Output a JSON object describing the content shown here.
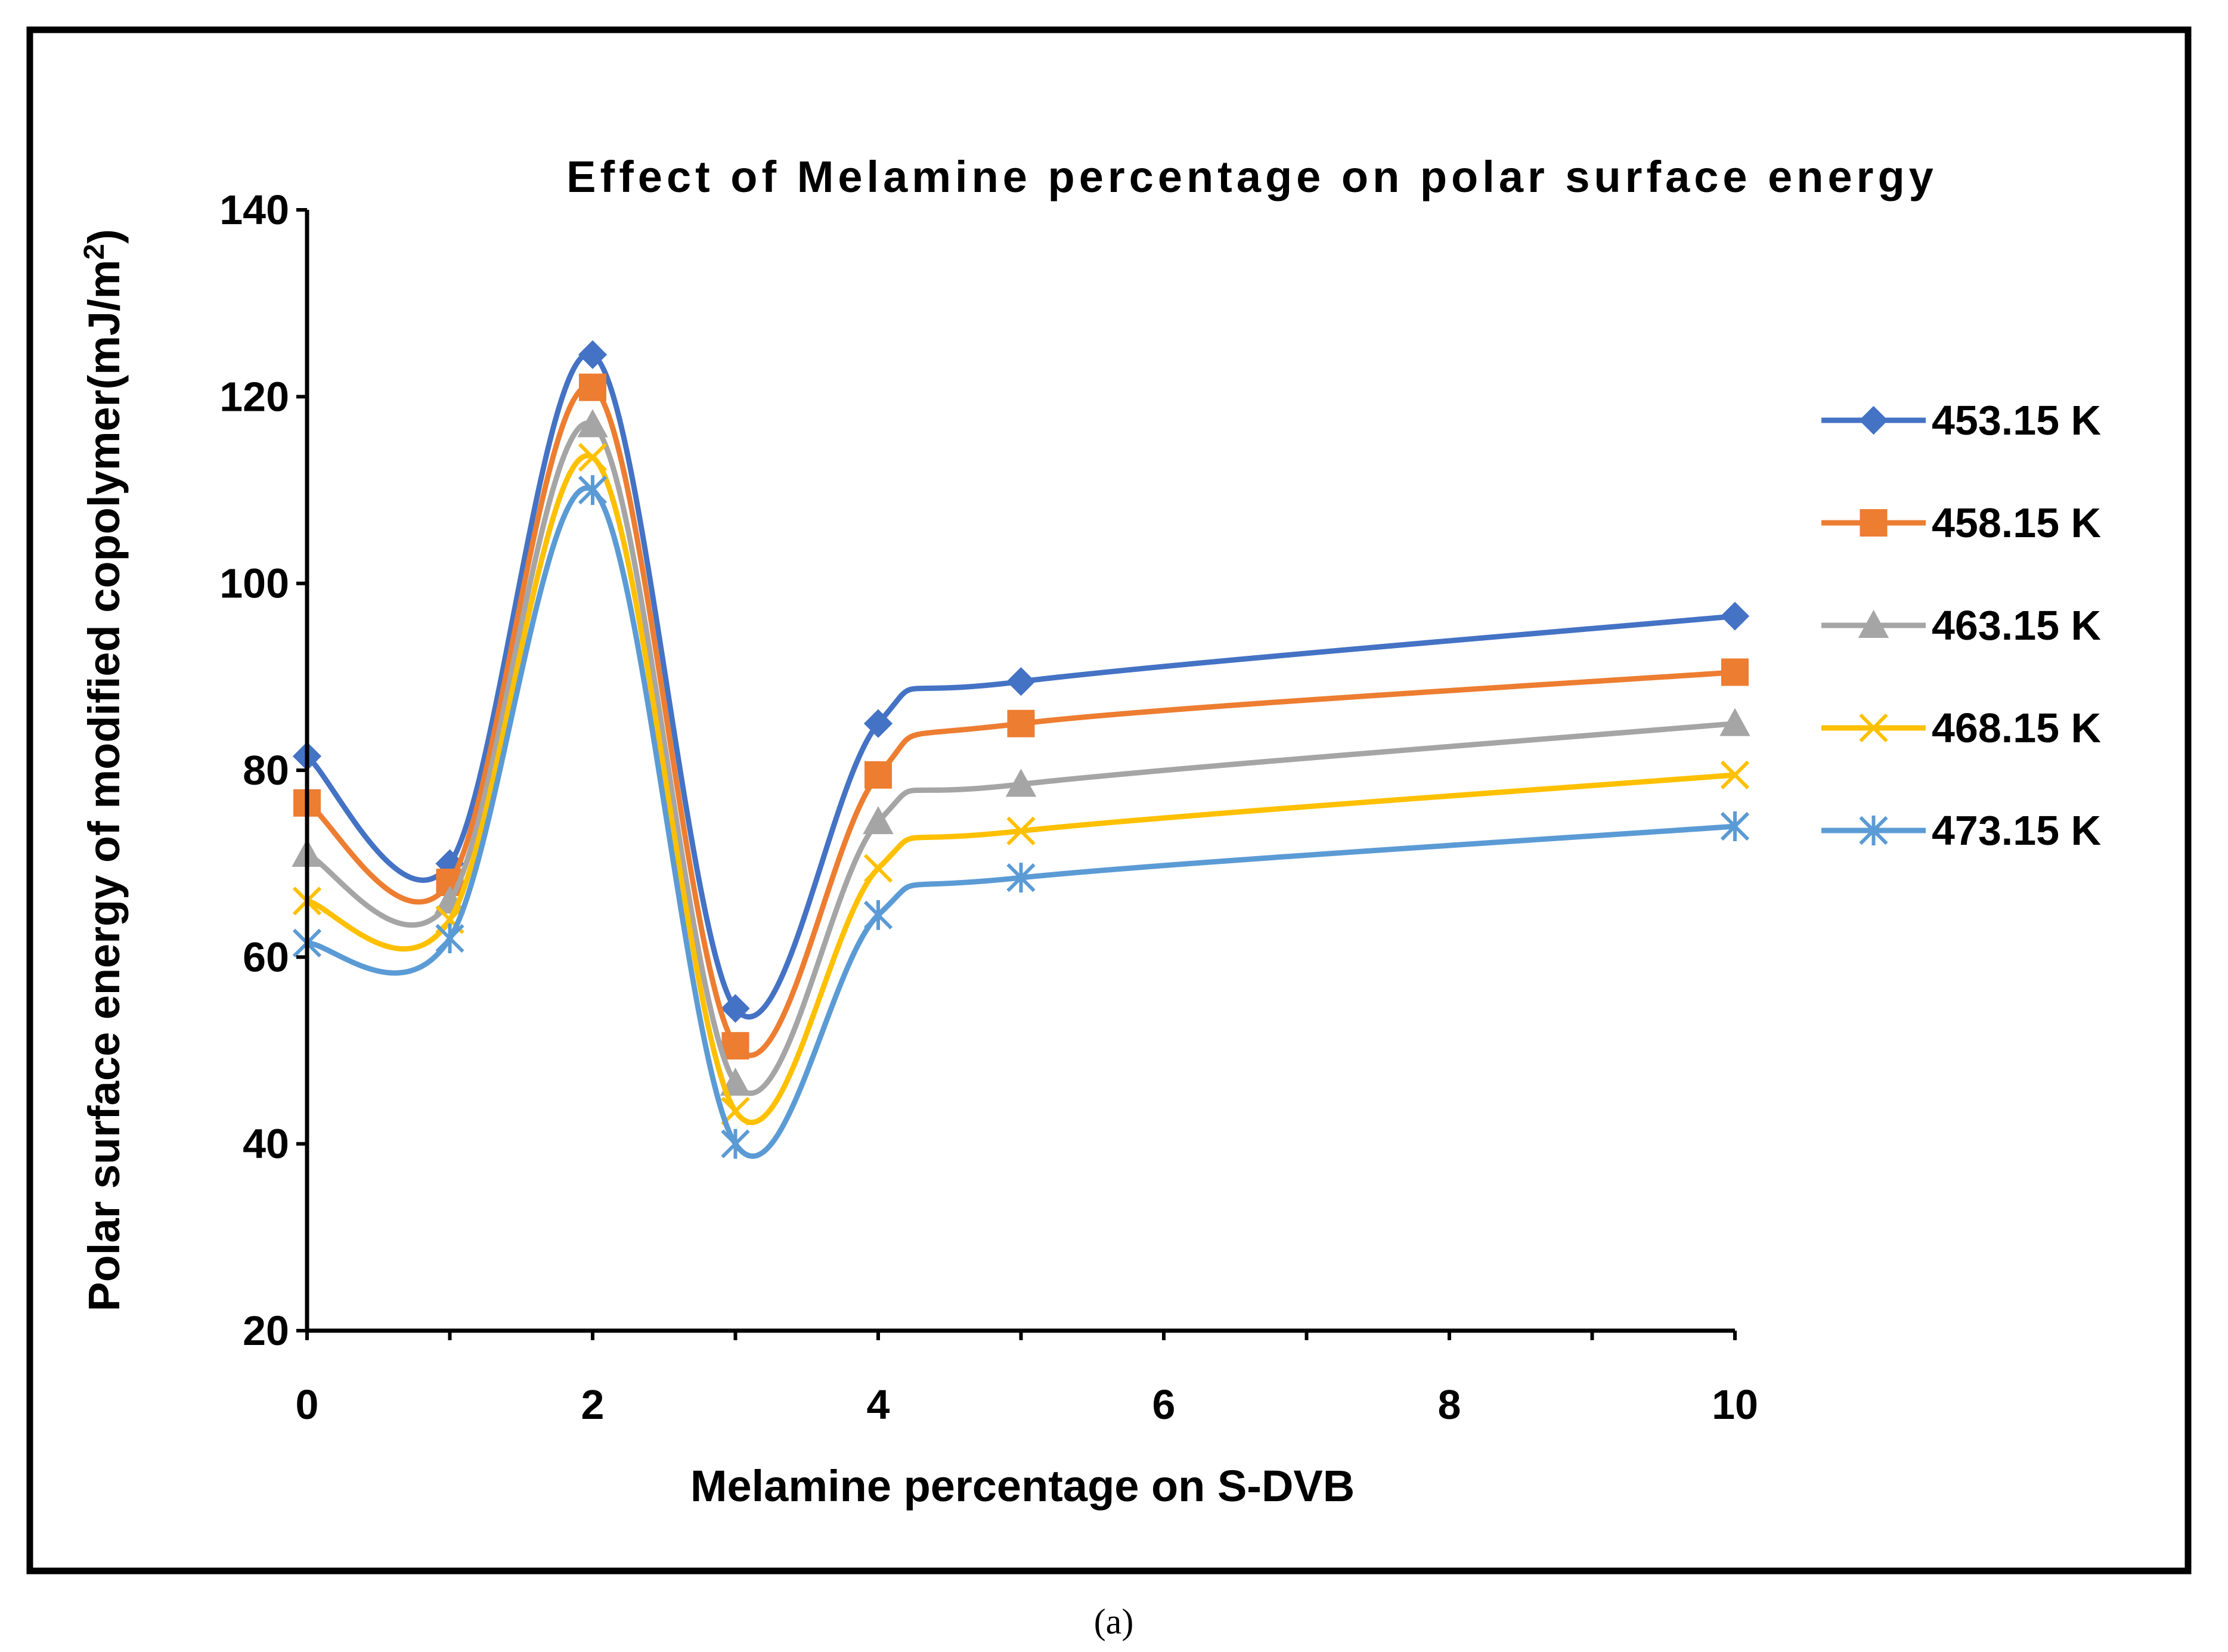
{
  "caption": "(a)",
  "chart_data": {
    "type": "line",
    "title": "Effect of Melamine percentage on polar surface energy",
    "xlabel": "Melamine percentage on S-DVB",
    "ylabel": "Polar surface energy of modified copolymer(mJ/m",
    "ylabel_sup": "2",
    "ylabel_close": ")",
    "xlim": [
      0,
      10
    ],
    "ylim": [
      20,
      140
    ],
    "xticks": [
      "0",
      "2",
      "4",
      "6",
      "8",
      "10"
    ],
    "yticks": [
      "20",
      "40",
      "60",
      "80",
      "100",
      "120",
      "140"
    ],
    "x": [
      0,
      1,
      2,
      3,
      4,
      5,
      10
    ],
    "series": [
      {
        "name": "453.15 K",
        "color": "#4472C4",
        "marker": "diamond",
        "values": [
          81.5,
          70.0,
          124.5,
          54.5,
          85.0,
          89.5,
          96.5
        ]
      },
      {
        "name": "458.15 K",
        "color": "#ED7D31",
        "marker": "square",
        "values": [
          76.5,
          68.0,
          121.0,
          50.5,
          79.5,
          85.0,
          90.5
        ]
      },
      {
        "name": "463.15 K",
        "color": "#A5A5A5",
        "marker": "triangle",
        "values": [
          71.0,
          66.0,
          117.0,
          46.5,
          74.5,
          78.5,
          85.0
        ]
      },
      {
        "name": "468.15 K",
        "color": "#FFC000",
        "marker": "x",
        "values": [
          66.0,
          64.0,
          113.5,
          43.5,
          69.5,
          73.5,
          79.5
        ]
      },
      {
        "name": "473.15 K",
        "color": "#5B9BD5",
        "marker": "star",
        "values": [
          61.5,
          62.0,
          110.0,
          40.0,
          64.5,
          68.5,
          74.0
        ]
      }
    ]
  }
}
